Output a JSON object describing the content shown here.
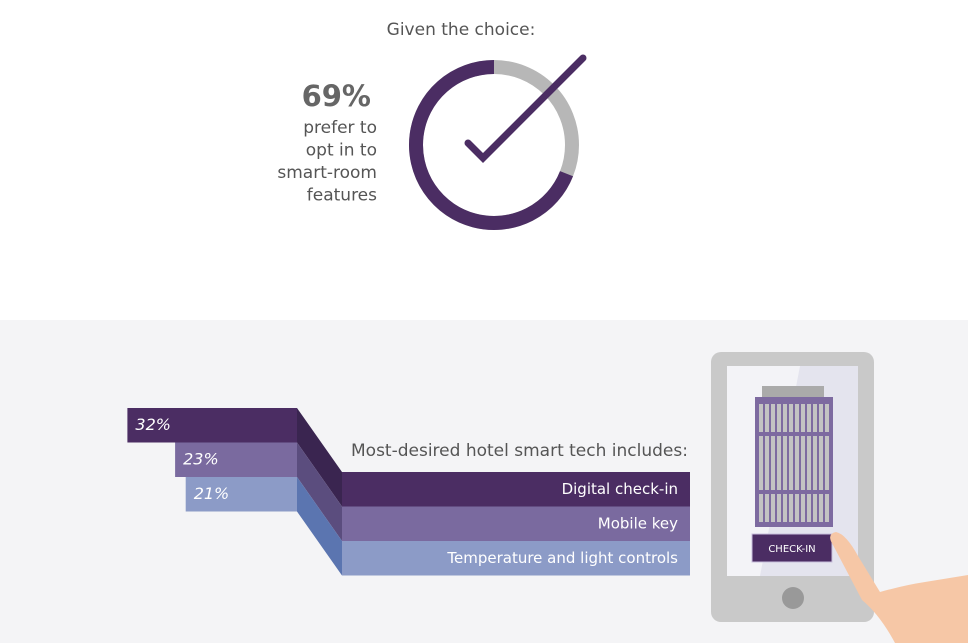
{
  "donut": {
    "title": "Given the choice:",
    "value": 69,
    "value_label": "69%",
    "caption_lines": [
      "prefer to",
      "opt in to",
      "smart-room",
      "features"
    ]
  },
  "bars": {
    "title": "Most-desired hotel smart tech includes:",
    "items": [
      {
        "label": "Digital check-in",
        "value": 32,
        "value_label": "32%"
      },
      {
        "label": "Mobile key",
        "value": 23,
        "value_label": "23%"
      },
      {
        "label": "Temperature and light controls",
        "value": 21,
        "value_label": "21%"
      }
    ]
  },
  "device": {
    "button": "CHECK-IN"
  }
}
